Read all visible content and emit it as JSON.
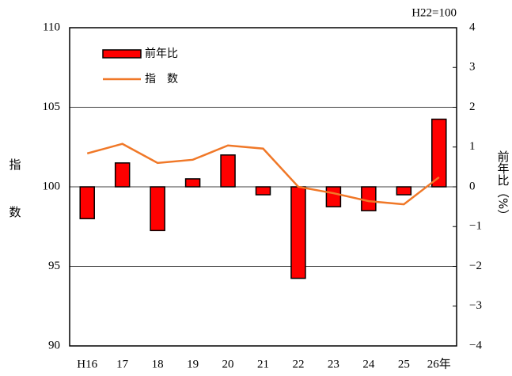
{
  "chart_data": {
    "type": "bar_line",
    "note": "H22=100",
    "ylabel": "指数",
    "y2label": "前年比（%）",
    "categories": [
      "H16",
      "17",
      "18",
      "19",
      "20",
      "21",
      "22",
      "23",
      "24",
      "25",
      "26年"
    ],
    "series": [
      {
        "name": "前年比",
        "type": "bar",
        "axis": "y2",
        "color": "#ff0000",
        "values": [
          -0.8,
          0.6,
          -1.1,
          0.2,
          0.8,
          -0.2,
          -2.3,
          -0.5,
          -0.6,
          -0.2,
          1.7
        ]
      },
      {
        "name": "指　数",
        "type": "line",
        "axis": "y",
        "color": "#f07828",
        "values": [
          102.1,
          102.7,
          101.5,
          101.7,
          102.6,
          102.4,
          100.0,
          99.6,
          99.1,
          98.9,
          100.6
        ]
      }
    ],
    "ylim": [
      90,
      110
    ],
    "yticks": [
      90,
      95,
      100,
      105,
      110
    ],
    "y2lim": [
      -4,
      4
    ],
    "y2ticks": [
      {
        "value": -4,
        "label": "−4"
      },
      {
        "value": -3,
        "label": "−3"
      },
      {
        "value": -2,
        "label": "−2"
      },
      {
        "value": -1,
        "label": "−1"
      },
      0,
      1,
      2,
      3,
      4
    ],
    "grid": true,
    "legend": "top-left"
  }
}
